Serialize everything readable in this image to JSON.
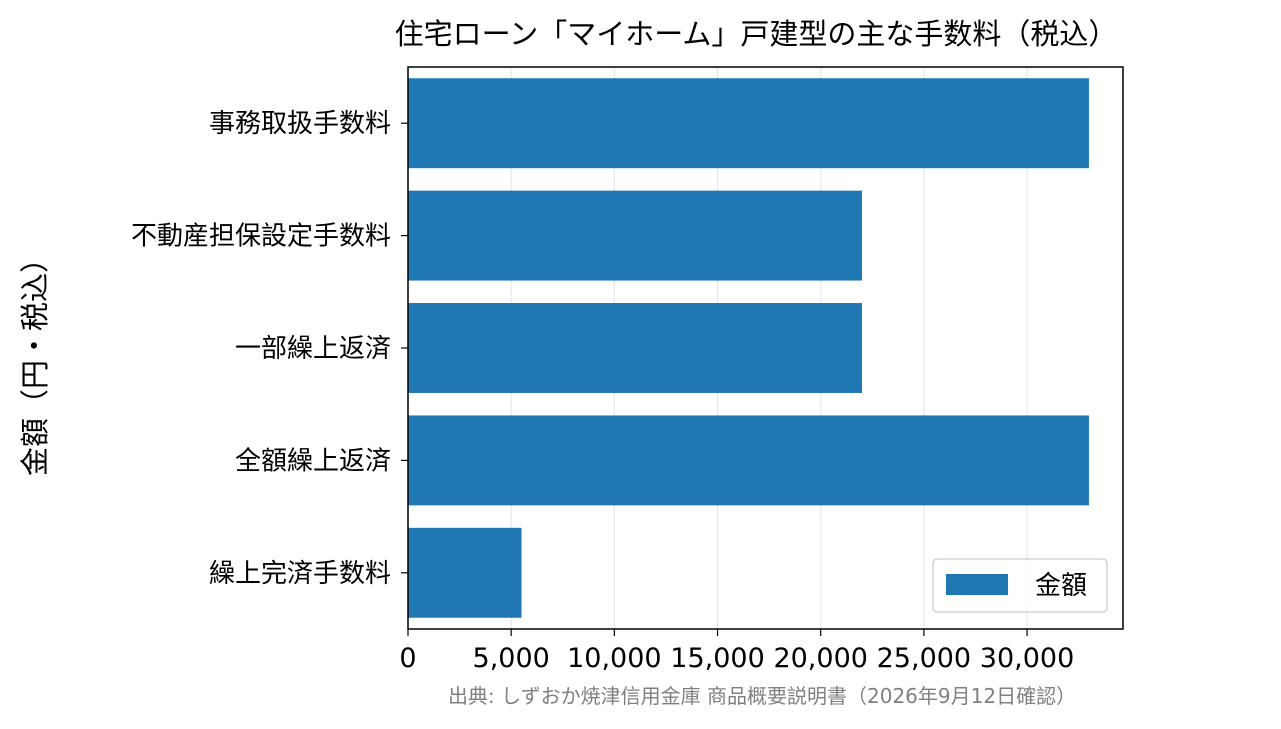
{
  "chart_data": {
    "type": "bar",
    "orientation": "horizontal",
    "title": "住宅ローン「マイホーム」戸建型の主な手数料（税込）",
    "xlabel": "",
    "ylabel": "金額（円・税込）",
    "categories": [
      "事務取扱手数料",
      "不動産担保設定手数料",
      "一部繰上返済",
      "全額繰上返済",
      "繰上完済手数料"
    ],
    "series": [
      {
        "name": "金額",
        "values": [
          33000,
          22000,
          22000,
          33000,
          5500
        ],
        "color": "#1f77b4"
      }
    ],
    "xlim": [
      0,
      34650
    ],
    "xticks": [
      0,
      5000,
      10000,
      15000,
      20000,
      25000,
      30000
    ],
    "xtick_labels": [
      "0",
      "5,000",
      "10,000",
      "15,000",
      "20,000",
      "25,000",
      "30,000"
    ],
    "grid": "vertical",
    "legend_position": "lower-right",
    "source_note": "出典: しずおか焼津信用金庫 商品概要説明書（2026年9月12日確認）"
  }
}
